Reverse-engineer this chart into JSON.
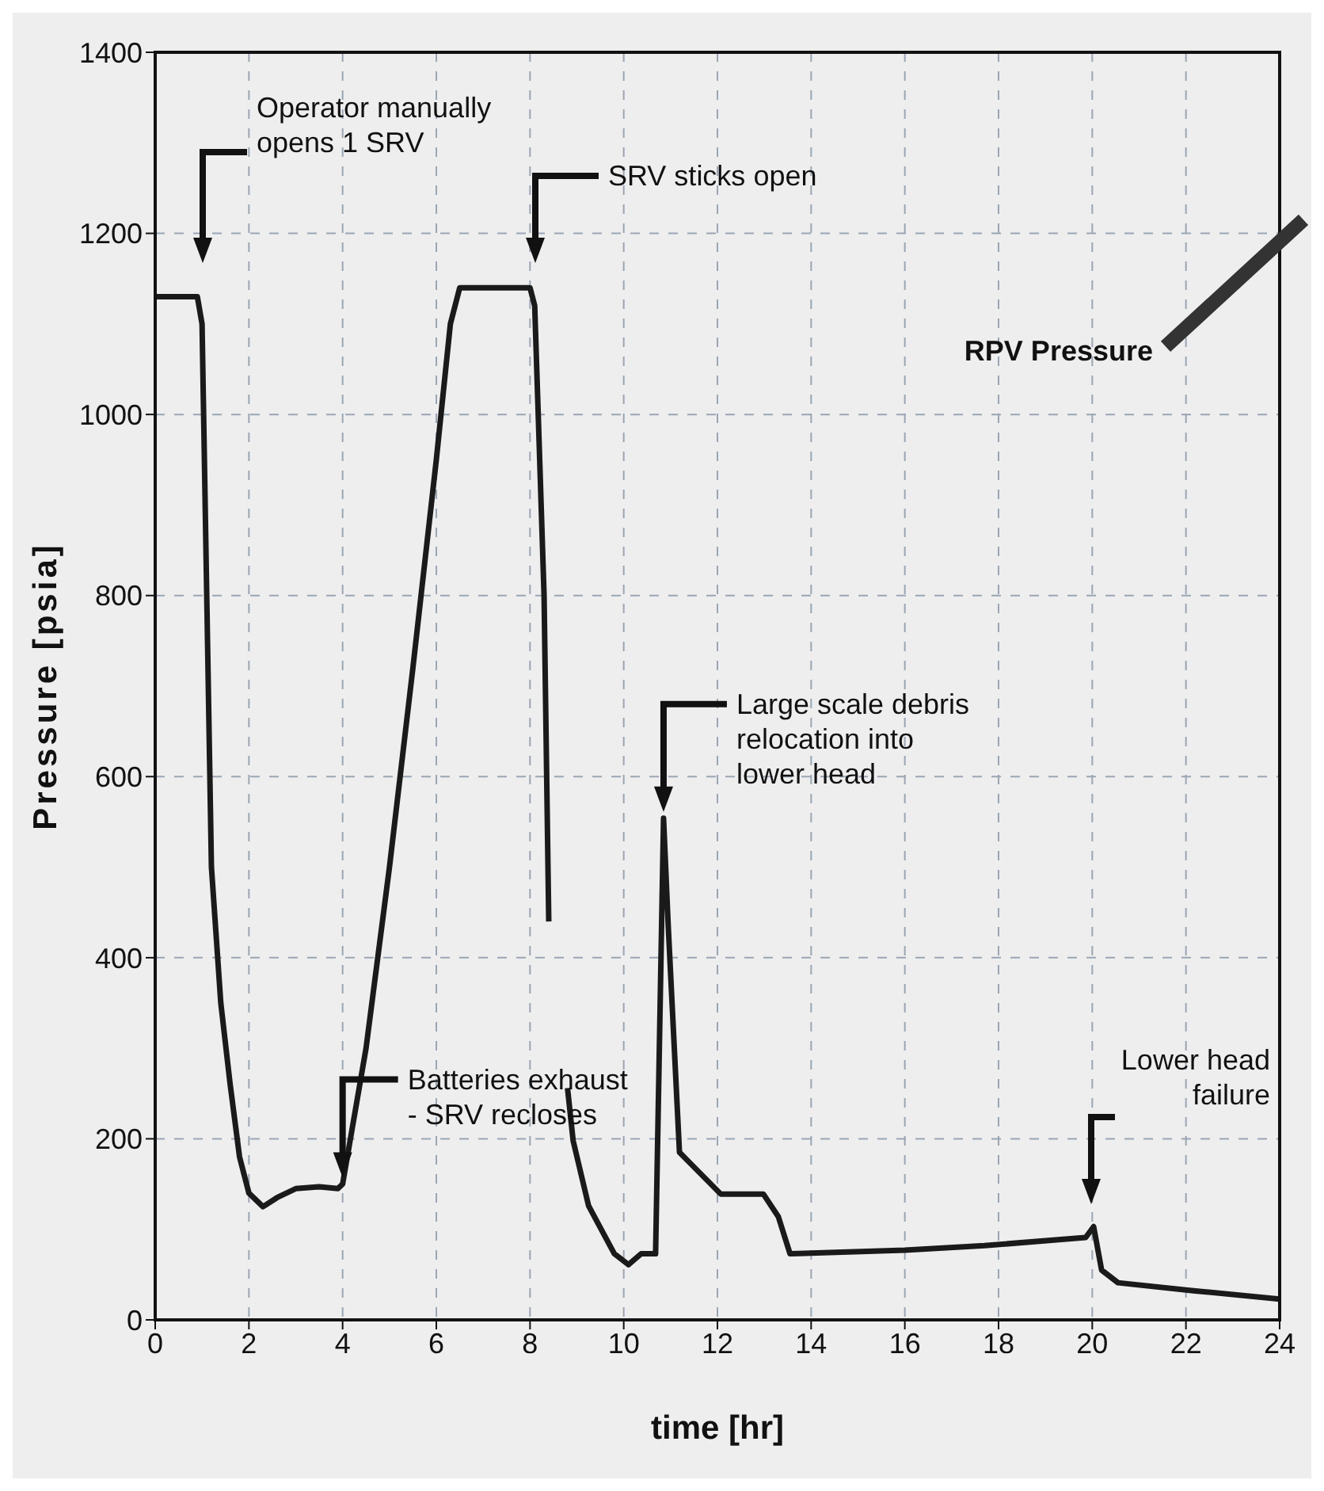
{
  "chart_data": {
    "type": "line",
    "xlabel": "time [hr]",
    "ylabel": "Pressure [psia]",
    "xlim": [
      0,
      24
    ],
    "xticks": [
      0,
      2,
      4,
      6,
      8,
      10,
      12,
      14,
      16,
      18,
      20,
      22,
      24
    ],
    "ylim": [
      0,
      1400
    ],
    "yticks": [
      0,
      200,
      400,
      600,
      800,
      1000,
      1200,
      1400
    ],
    "grid": true,
    "legend": false,
    "marker": "none",
    "line_style": "solid",
    "series": [
      {
        "name": "RPV Pressure",
        "color": "#1a1a1a",
        "x": [
          0,
          0.9,
          1.0,
          1.1,
          1.2,
          1.4,
          1.6,
          1.8,
          2.0,
          2.3,
          2.6,
          3.0,
          3.5,
          3.9,
          4.0,
          4.5,
          5.0,
          5.5,
          6.0,
          6.3,
          6.5,
          7.0,
          8.0,
          8.1,
          8.3,
          8.4,
          8.6,
          8.8,
          8.92,
          9.25,
          9.8,
          10.1,
          10.37,
          10.68,
          10.85,
          10.95,
          11.19,
          11.4,
          12.07,
          12.98,
          13.3,
          13.55,
          16.0,
          17.7,
          19.86,
          20.03,
          20.2,
          20.55,
          22.2,
          24
        ],
        "values": [
          1130,
          1130,
          1100,
          800,
          500,
          350,
          260,
          180,
          140,
          125,
          135,
          145,
          147,
          145,
          150,
          300,
          500,
          720,
          950,
          1100,
          1140,
          1140,
          1140,
          1120,
          800,
          440,
          null,
          256,
          198,
          126,
          73,
          61,
          73,
          73,
          554,
          435,
          185,
          174,
          139,
          139,
          114,
          73,
          77,
          82,
          91,
          103,
          55,
          41,
          32,
          23
        ]
      }
    ],
    "annotations": [
      "Operator manually opens 1 SRV",
      "SRV sticks open",
      {
        "text": "Large scale debris relocation into lower head",
        "x": 10.85,
        "y": 554
      },
      {
        "text": "Batteries exhaust - SRV recloses",
        "x": 4.0,
        "y": 150
      },
      "Lower head failure"
    ]
  }
}
